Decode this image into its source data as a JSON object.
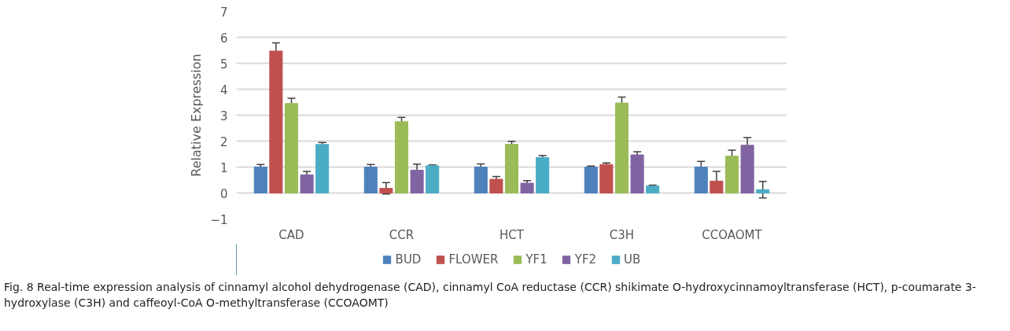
{
  "chart_data": {
    "type": "bar",
    "ylabel": "Relative Expression",
    "categories": [
      "CAD",
      "CCR",
      "HCT",
      "C3H",
      "CCOAOMT"
    ],
    "series": [
      {
        "name": "BUD",
        "color": "#4f81bd",
        "values": [
          1.0,
          1.0,
          1.0,
          1.0,
          1.0
        ],
        "errors": [
          0.1,
          0.1,
          0.12,
          0.04,
          0.22
        ]
      },
      {
        "name": "FLOWER",
        "color": "#c0504d",
        "values": [
          5.47,
          0.18,
          0.53,
          1.1,
          0.46
        ],
        "errors": [
          0.32,
          0.22,
          0.11,
          0.06,
          0.37
        ]
      },
      {
        "name": "YF1",
        "color": "#9bbb59",
        "values": [
          3.45,
          2.75,
          1.88,
          3.47,
          1.42
        ],
        "errors": [
          0.2,
          0.17,
          0.11,
          0.23,
          0.23
        ]
      },
      {
        "name": "YF2",
        "color": "#8064a2",
        "values": [
          0.7,
          0.88,
          0.38,
          1.47,
          1.84
        ],
        "errors": [
          0.13,
          0.23,
          0.1,
          0.12,
          0.3
        ]
      },
      {
        "name": "UB",
        "color": "#4bacc6",
        "values": [
          1.87,
          1.05,
          1.37,
          0.27,
          0.13
        ],
        "errors": [
          0.08,
          0.03,
          0.08,
          0.03,
          0.32
        ]
      }
    ],
    "ylim": [
      -1,
      7
    ],
    "yticks": [
      -1,
      0,
      1,
      2,
      3,
      4,
      5,
      6,
      7
    ],
    "grid": "y",
    "legend": "bottom",
    "annotations": [
      "Fig. 8  Real-time expression analysis of cinnamyl alcohol dehydrogenase (CAD), cinnamyl CoA reductase (CCR) shikimate O-hydroxycinnamoyltransferase (HCT), p-coumarate 3-hydroxylase (C3H) and caffeoyl-CoA O-methyltransferase (CCOAOMT)"
    ]
  }
}
